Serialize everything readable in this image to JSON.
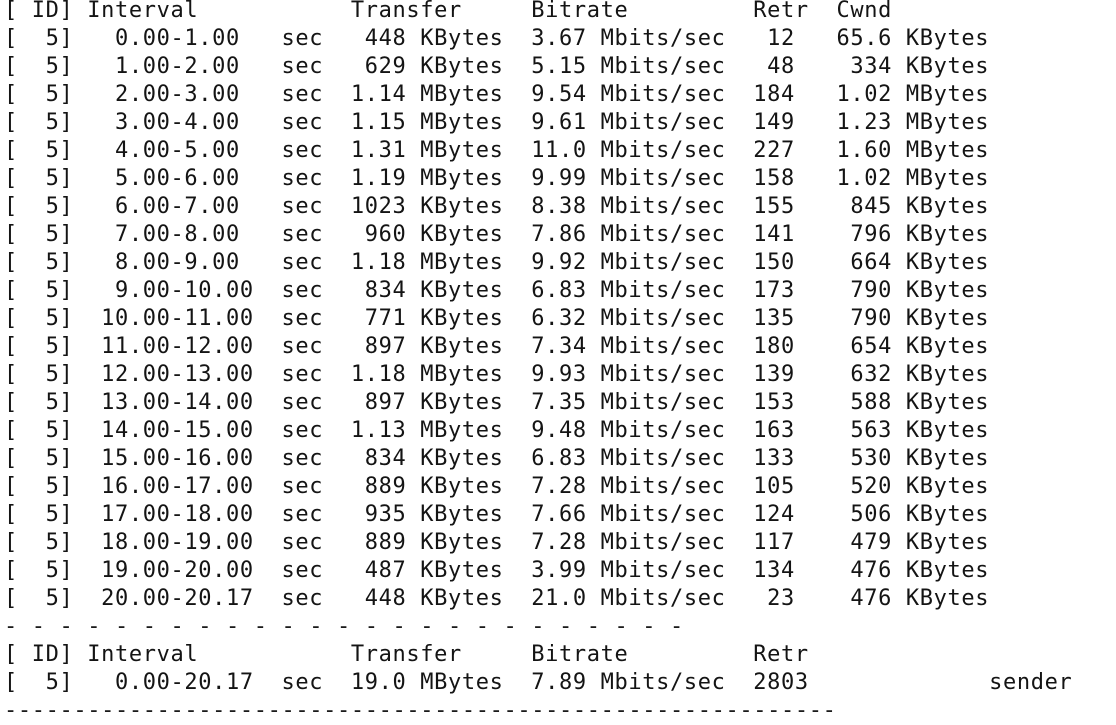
{
  "terminal": {
    "lines": [
      "[ ID] Interval           Transfer     Bitrate         Retr  Cwnd",
      "[  5]   0.00-1.00   sec   448 KBytes  3.67 Mbits/sec   12   65.6 KBytes",
      "[  5]   1.00-2.00   sec   629 KBytes  5.15 Mbits/sec   48    334 KBytes",
      "[  5]   2.00-3.00   sec  1.14 MBytes  9.54 Mbits/sec  184   1.02 MBytes",
      "[  5]   3.00-4.00   sec  1.15 MBytes  9.61 Mbits/sec  149   1.23 MBytes",
      "[  5]   4.00-5.00   sec  1.31 MBytes  11.0 Mbits/sec  227   1.60 MBytes",
      "[  5]   5.00-6.00   sec  1.19 MBytes  9.99 Mbits/sec  158   1.02 MBytes",
      "[  5]   6.00-7.00   sec  1023 KBytes  8.38 Mbits/sec  155    845 KBytes",
      "[  5]   7.00-8.00   sec   960 KBytes  7.86 Mbits/sec  141    796 KBytes",
      "[  5]   8.00-9.00   sec  1.18 MBytes  9.92 Mbits/sec  150    664 KBytes",
      "[  5]   9.00-10.00  sec   834 KBytes  6.83 Mbits/sec  173    790 KBytes",
      "[  5]  10.00-11.00  sec   771 KBytes  6.32 Mbits/sec  135    790 KBytes",
      "[  5]  11.00-12.00  sec   897 KBytes  7.34 Mbits/sec  180    654 KBytes",
      "[  5]  12.00-13.00  sec  1.18 MBytes  9.93 Mbits/sec  139    632 KBytes",
      "[  5]  13.00-14.00  sec   897 KBytes  7.35 Mbits/sec  153    588 KBytes",
      "[  5]  14.00-15.00  sec  1.13 MBytes  9.48 Mbits/sec  163    563 KBytes",
      "[  5]  15.00-16.00  sec   834 KBytes  6.83 Mbits/sec  133    530 KBytes",
      "[  5]  16.00-17.00  sec   889 KBytes  7.28 Mbits/sec  105    520 KBytes",
      "[  5]  17.00-18.00  sec   935 KBytes  7.66 Mbits/sec  124    506 KBytes",
      "[  5]  18.00-19.00  sec   889 KBytes  7.28 Mbits/sec  117    479 KBytes",
      "[  5]  19.00-20.00  sec   487 KBytes  3.99 Mbits/sec  134    476 KBytes",
      "[  5]  20.00-20.17  sec   448 KBytes  21.0 Mbits/sec   23    476 KBytes",
      "- - - - - - - - - - - - - - - - - - - - - - - - -",
      "[ ID] Interval           Transfer     Bitrate         Retr",
      "[  5]   0.00-20.17  sec  19.0 MBytes  7.89 Mbits/sec  2803             sender",
      "------------------------------------------------------------"
    ]
  }
}
